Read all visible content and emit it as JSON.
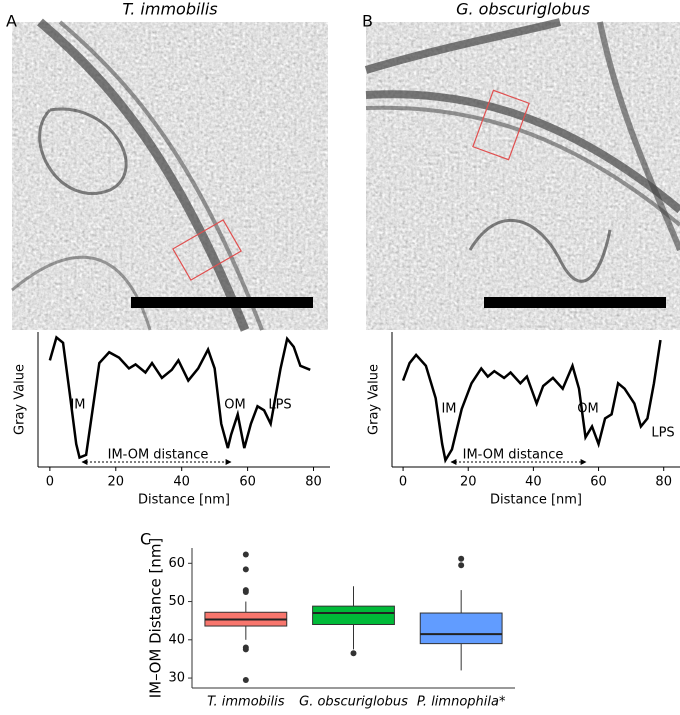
{
  "chart_data": [
    {
      "type": "line",
      "panel": "A",
      "title": "T. immobilis",
      "xlabel": "Distance [nm]",
      "ylabel": "Gray Value",
      "x": [
        0,
        2,
        4,
        6,
        8,
        9,
        11,
        13,
        15,
        18,
        21,
        24,
        26,
        29,
        31,
        34,
        37,
        39,
        42,
        45,
        48,
        50,
        52,
        54,
        55,
        57,
        59,
        61,
        63,
        65,
        67,
        70,
        72,
        74,
        76,
        79
      ],
      "y": [
        79,
        96,
        92,
        55,
        17,
        7,
        9,
        43,
        77,
        85,
        81,
        73,
        76,
        70,
        77,
        66,
        72,
        79,
        64,
        73,
        87,
        73,
        32,
        14,
        24,
        39,
        14,
        32,
        45,
        42,
        32,
        73,
        95,
        89,
        75,
        72
      ],
      "xlim": [
        -3.6,
        85
      ],
      "xticks": [
        0,
        20,
        40,
        60,
        80
      ],
      "ylim": [
        0,
        100
      ],
      "color": "#000000",
      "annotations": [
        "IM",
        "OM",
        "LPS",
        "IM-OM distance"
      ]
    },
    {
      "type": "line",
      "panel": "B",
      "title": "G. obscuriglobus",
      "xlabel": "Distance [nm]",
      "ylabel": "Gray Value",
      "x": [
        0,
        2,
        4,
        7,
        10,
        12,
        13,
        15,
        18,
        21,
        24,
        26,
        28,
        31,
        33,
        36,
        38,
        41,
        43,
        46,
        49,
        52,
        54,
        56,
        58,
        60,
        62,
        64,
        66,
        68,
        71,
        73,
        75,
        77,
        79
      ],
      "y": [
        64,
        77,
        83,
        75,
        51,
        17,
        5,
        13,
        43,
        62,
        73,
        67,
        71,
        66,
        70,
        62,
        67,
        47,
        60,
        66,
        58,
        75,
        58,
        22,
        30,
        17,
        36,
        39,
        62,
        58,
        47,
        30,
        36,
        62,
        94
      ],
      "xlim": [
        -3.4,
        85
      ],
      "xticks": [
        0,
        20,
        40,
        60,
        80
      ],
      "ylim": [
        0,
        100
      ],
      "color": "#000000",
      "annotations": [
        "IM",
        "OM",
        "LPS",
        "IM-OM distance"
      ]
    },
    {
      "type": "box",
      "panel": "C",
      "ylabel": "IM–OM Distance [nm]",
      "categories": [
        "T. immobilis",
        "G. obscuriglobus",
        "P. limnophila*"
      ],
      "colors": [
        "#f8766d",
        "#00ba38",
        "#619cff"
      ],
      "boxes": [
        {
          "whisker_low": 40,
          "q1": 43.6,
          "median": 45.3,
          "q3": 47.2,
          "whisker_high": 50,
          "outliers": [
            62.3,
            58.4,
            53,
            52.5,
            38,
            37.5,
            29.5
          ]
        },
        {
          "whisker_low": 37.5,
          "q1": 44,
          "median": 47,
          "q3": 48.8,
          "whisker_high": 54,
          "outliers": [
            36.5
          ]
        },
        {
          "whisker_low": 32,
          "q1": 39,
          "median": 41.5,
          "q3": 47,
          "whisker_high": 53,
          "outliers": [
            61.2,
            59.5
          ]
        }
      ],
      "ylim": [
        27.4,
        64
      ],
      "yticks": [
        30,
        40,
        50,
        60
      ]
    }
  ]
}
